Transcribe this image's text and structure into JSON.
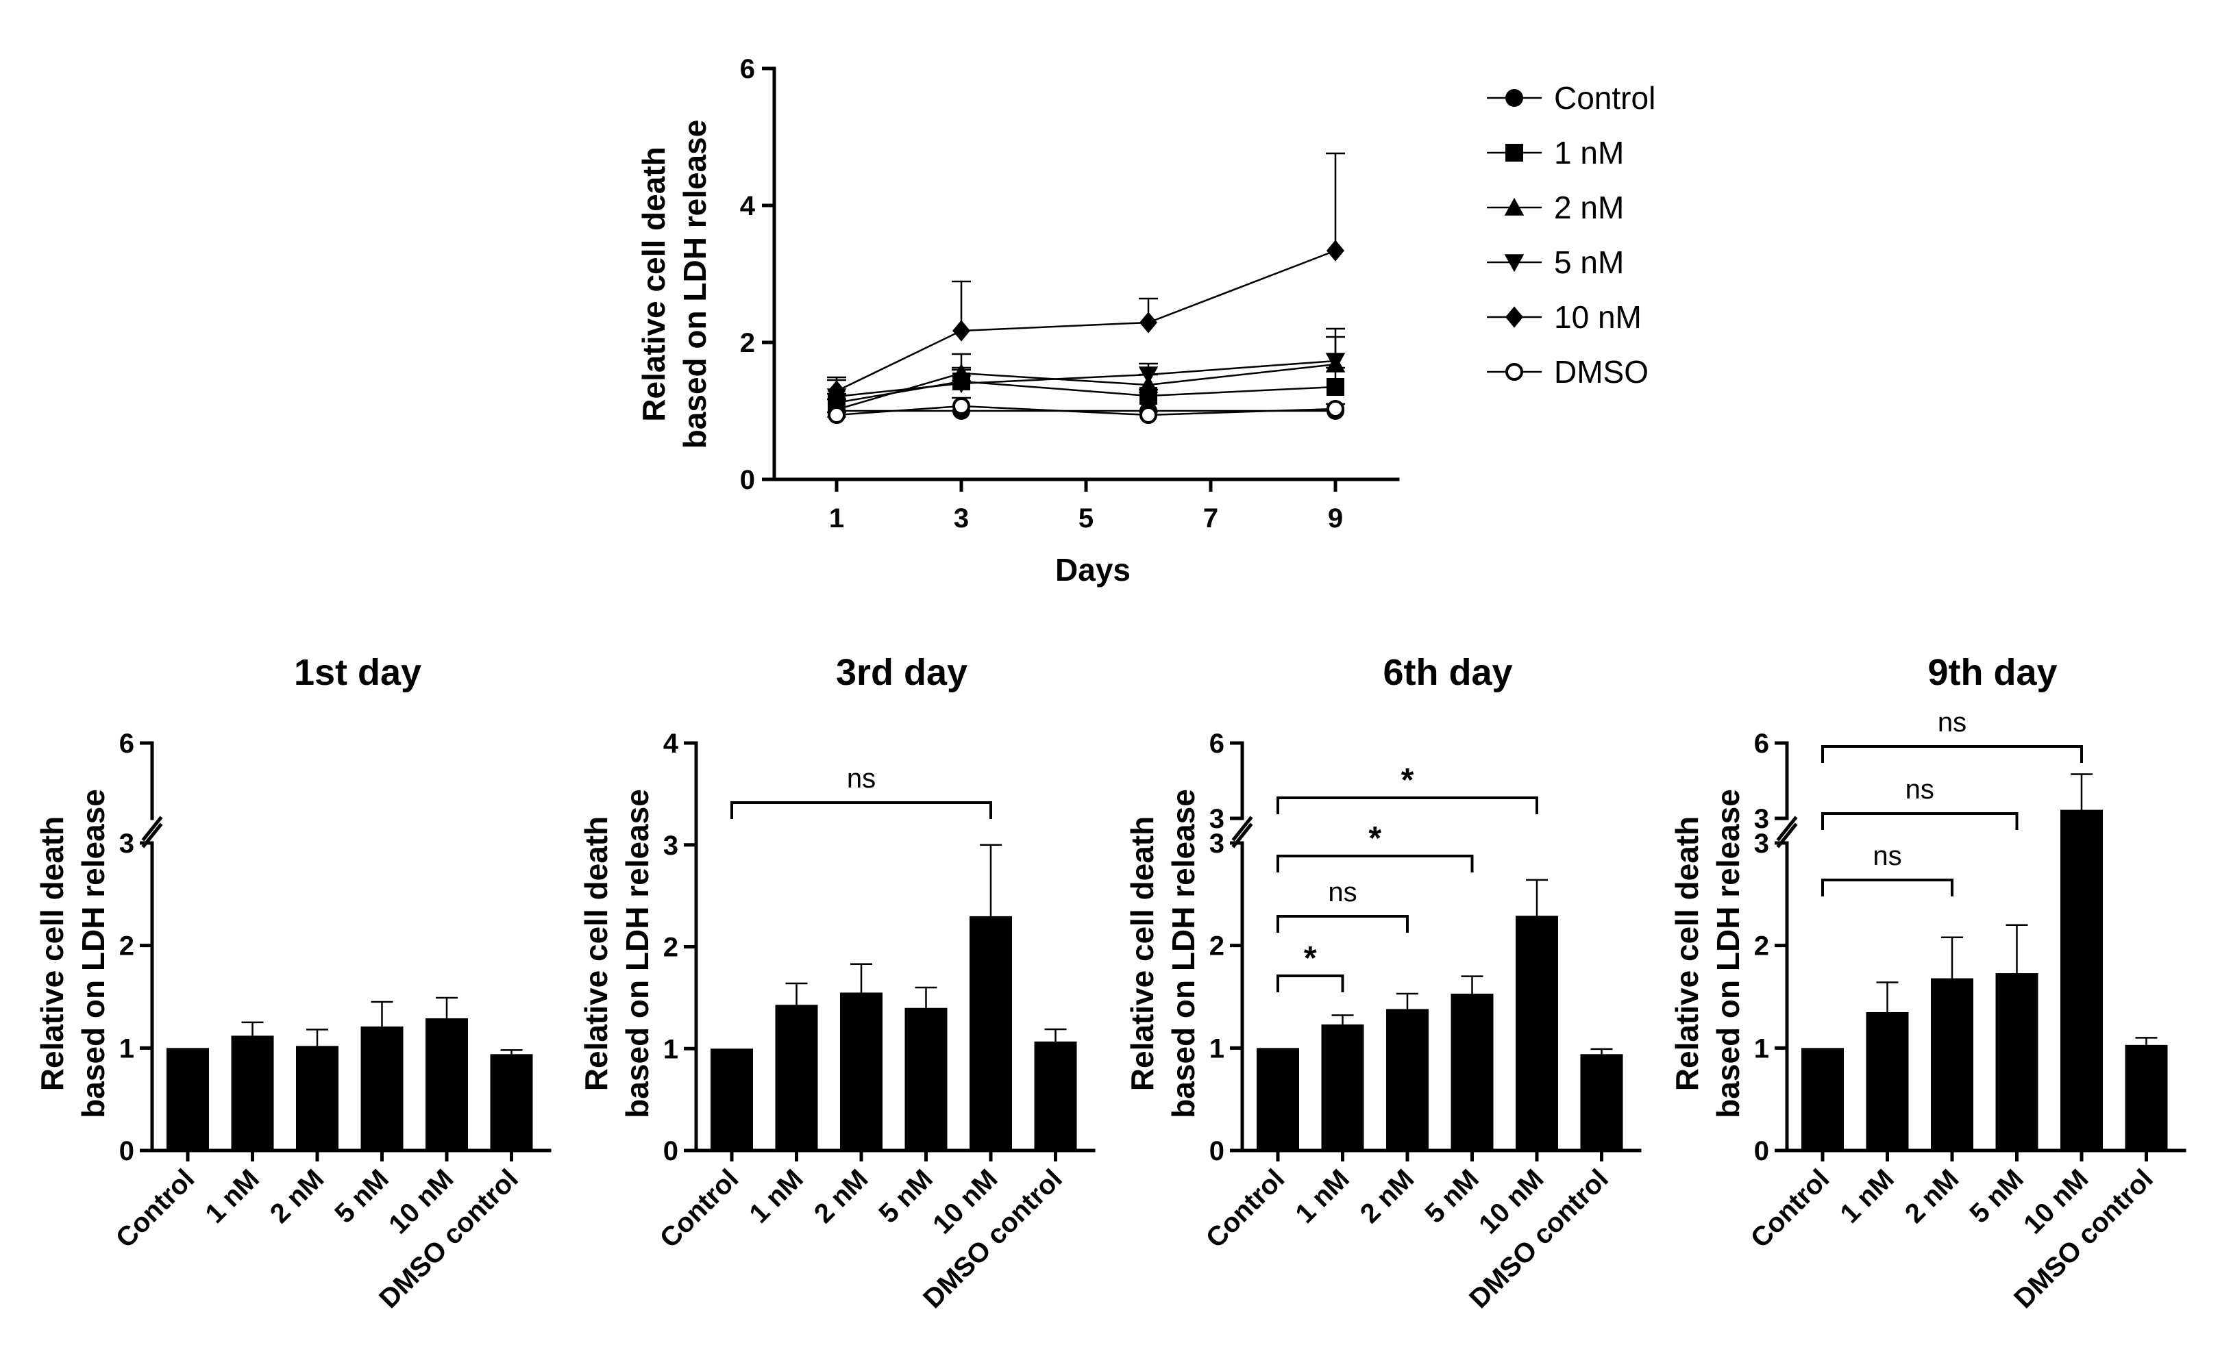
{
  "line_chart": {
    "xlabel": "Days",
    "ylabel_line1": "Relative cell death",
    "ylabel_line2": "based on LDH release",
    "xticks": [
      "1",
      "3",
      "5",
      "7",
      "9"
    ],
    "yticks": [
      "0",
      "2",
      "4",
      "6"
    ]
  },
  "bar_axis": {
    "ylabel_line1": "Relative cell death",
    "ylabel_line2": "based on LDH release"
  },
  "chart_data": [
    {
      "type": "line",
      "title": "",
      "xlabel": "Days",
      "ylabel": "Relative cell death based on LDH release",
      "xlim": [
        0,
        10
      ],
      "ylim": [
        0,
        6
      ],
      "x": [
        1,
        3,
        6,
        9
      ],
      "series": [
        {
          "name": "Control",
          "marker": "circle",
          "values": [
            1.0,
            1.0,
            1.0,
            1.0
          ],
          "errors": [
            0.0,
            0.0,
            0.0,
            0.0
          ]
        },
        {
          "name": "1 nM",
          "marker": "square",
          "values": [
            1.12,
            1.43,
            1.22,
            1.35
          ],
          "errors": [
            0.13,
            0.2,
            0.09,
            0.28
          ]
        },
        {
          "name": "2 nM",
          "marker": "triangle-up",
          "values": [
            1.02,
            1.55,
            1.38,
            1.68
          ],
          "errors": [
            0.15,
            0.28,
            0.15,
            0.4
          ]
        },
        {
          "name": "5 nM",
          "marker": "triangle-down",
          "values": [
            1.21,
            1.4,
            1.53,
            1.73
          ],
          "errors": [
            0.24,
            0.2,
            0.16,
            0.47
          ]
        },
        {
          "name": "10 nM",
          "marker": "diamond",
          "values": [
            1.29,
            2.17,
            2.29,
            3.34
          ],
          "errors": [
            0.2,
            0.72,
            0.35,
            1.42
          ]
        },
        {
          "name": "DMSO",
          "marker": "open-circle",
          "values": [
            0.94,
            1.07,
            0.94,
            1.03
          ],
          "errors": [
            0.04,
            0.12,
            0.05,
            0.07
          ]
        }
      ]
    },
    {
      "type": "bar",
      "title": "1st day",
      "ylabel": "Relative cell death based on LDH release",
      "categories": [
        "Control",
        "1 nM",
        "2 nM",
        "5 nM",
        "10 nM",
        "DMSO control"
      ],
      "values": [
        1.0,
        1.12,
        1.02,
        1.21,
        1.29,
        0.94
      ],
      "errors": [
        0.0,
        0.13,
        0.16,
        0.24,
        0.2,
        0.04
      ],
      "ylim": [
        0,
        6
      ],
      "axis_break": [
        3,
        3
      ],
      "yticks": [
        "0",
        "1",
        "2",
        "3",
        "6"
      ],
      "significance": []
    },
    {
      "type": "bar",
      "title": "3rd day",
      "ylabel": "Relative cell death based on LDH release",
      "categories": [
        "Control",
        "1 nM",
        "2 nM",
        "5 nM",
        "10 nM",
        "DMSO control"
      ],
      "values": [
        1.0,
        1.43,
        1.55,
        1.4,
        2.3,
        1.07
      ],
      "errors": [
        0.0,
        0.21,
        0.28,
        0.2,
        0.7,
        0.12
      ],
      "ylim": [
        0,
        4
      ],
      "axis_break": null,
      "yticks": [
        "0",
        "1",
        "2",
        "3",
        "4"
      ],
      "significance": [
        {
          "from": "Control",
          "to": "10 nM",
          "label": "ns"
        }
      ]
    },
    {
      "type": "bar",
      "title": "6th day",
      "ylabel": "Relative cell death based on LDH release",
      "categories": [
        "Control",
        "1 nM",
        "2 nM",
        "5 nM",
        "10 nM",
        "DMSO control"
      ],
      "values": [
        1.0,
        1.23,
        1.38,
        1.53,
        2.29,
        0.94
      ],
      "errors": [
        0.0,
        0.09,
        0.15,
        0.17,
        0.35,
        0.05
      ],
      "ylim": [
        0,
        6
      ],
      "axis_break": [
        3,
        3
      ],
      "yticks": [
        "0",
        "1",
        "2",
        "3",
        "3",
        "6"
      ],
      "significance": [
        {
          "from": "Control",
          "to": "1 nM",
          "label": "*"
        },
        {
          "from": "Control",
          "to": "2 nM",
          "label": "ns"
        },
        {
          "from": "Control",
          "to": "5 nM",
          "label": "*"
        },
        {
          "from": "Control",
          "to": "10 nM",
          "label": "*"
        }
      ]
    },
    {
      "type": "bar",
      "title": "9th day",
      "ylabel": "Relative cell death based on LDH release",
      "categories": [
        "Control",
        "1 nM",
        "2 nM",
        "5 nM",
        "10 nM",
        "DMSO control"
      ],
      "values": [
        1.0,
        1.35,
        1.68,
        1.73,
        3.34,
        1.03
      ],
      "errors": [
        0.0,
        0.29,
        0.4,
        0.47,
        1.42,
        0.07
      ],
      "ylim": [
        0,
        6
      ],
      "axis_break": [
        3,
        3
      ],
      "yticks": [
        "0",
        "1",
        "2",
        "3",
        "3",
        "6"
      ],
      "significance": [
        {
          "from": "Control",
          "to": "2 nM",
          "label": "ns"
        },
        {
          "from": "Control",
          "to": "5 nM",
          "label": "ns"
        },
        {
          "from": "Control",
          "to": "10 nM",
          "label": "ns"
        }
      ]
    }
  ]
}
